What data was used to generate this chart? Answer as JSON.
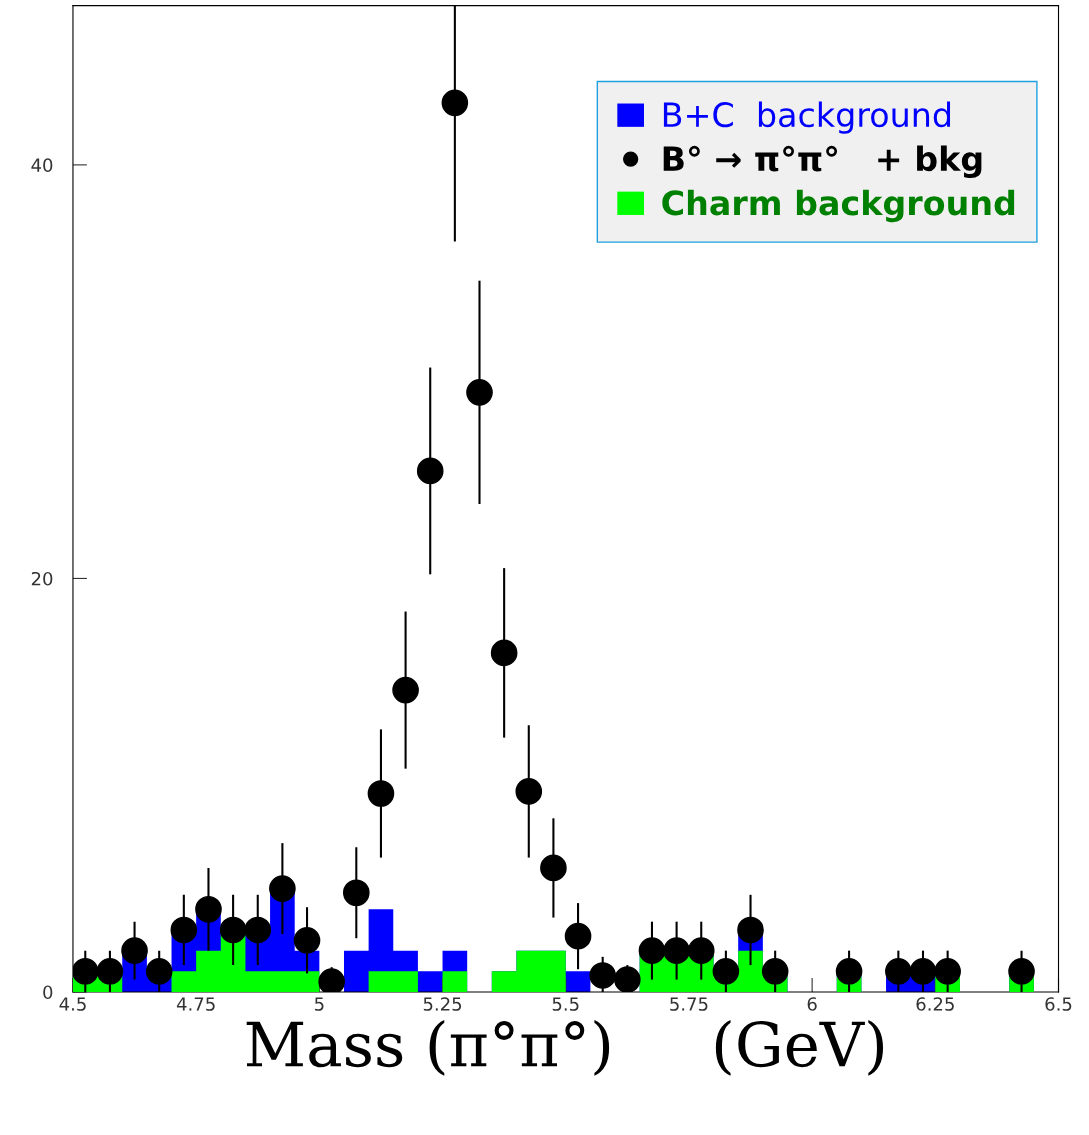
{
  "chart_data": {
    "type": "histogram",
    "bins": [
      4.5,
      4.55,
      4.6,
      4.65,
      4.7,
      4.75,
      4.8,
      4.85,
      4.9,
      4.95,
      5.0,
      5.05,
      5.1,
      5.15,
      5.2,
      5.25,
      5.3,
      5.35,
      5.4,
      5.45,
      5.5,
      5.55,
      5.6,
      5.65,
      5.7,
      5.75,
      5.8,
      5.85,
      5.9,
      5.95,
      6.0,
      6.05,
      6.1,
      6.15,
      6.2,
      6.25,
      6.3,
      6.35,
      6.4,
      6.45,
      6.5
    ],
    "series": [
      {
        "name": "B+C  background",
        "color": "#0000ff",
        "values": [
          1,
          1,
          2,
          1,
          3,
          4,
          3,
          3,
          5,
          2,
          0,
          2,
          4,
          2,
          1,
          2,
          0,
          1,
          2,
          2,
          1,
          0,
          0,
          2,
          2,
          2,
          1,
          3,
          1,
          0,
          0,
          1,
          0,
          1,
          1,
          1,
          0,
          0,
          1,
          0
        ]
      },
      {
        "name": "B° → π°π°   + bkg",
        "type": "scatter",
        "color": "#000000",
        "x": [
          4.525,
          4.575,
          4.625,
          4.675,
          4.725,
          4.775,
          4.825,
          4.875,
          4.925,
          4.975,
          5.025,
          5.075,
          5.125,
          5.175,
          5.225,
          5.275,
          5.325,
          5.375,
          5.425,
          5.475,
          5.525,
          5.575,
          5.625,
          5.675,
          5.725,
          5.775,
          5.825,
          5.875,
          5.925,
          6.075,
          6.175,
          6.225,
          6.275,
          6.425
        ],
        "values": [
          1,
          1,
          2,
          1,
          3,
          4,
          3,
          3,
          5,
          2.5,
          0.5,
          4.8,
          9.6,
          14.6,
          25.2,
          43.0,
          29.0,
          16.4,
          9.7,
          6.0,
          2.7,
          0.8,
          0.6,
          2,
          2,
          2,
          1,
          3,
          1,
          1,
          1,
          1,
          1,
          1
        ],
        "errors": [
          1,
          1,
          1.4,
          1,
          1.7,
          2,
          1.7,
          1.7,
          2.2,
          1.6,
          0.7,
          2.2,
          3.1,
          3.8,
          5.0,
          [
            36.3,
            47.7
          ],
          5.4,
          4.1,
          3.2,
          2.4,
          1.6,
          0.9,
          0.7,
          1.4,
          1.4,
          1.4,
          1,
          1.7,
          1,
          1,
          1,
          1,
          1,
          1
        ]
      },
      {
        "name": "Charm background",
        "color": "#00ff00",
        "values": [
          1,
          1,
          0,
          0,
          1,
          2,
          3,
          1,
          1,
          1,
          0,
          0,
          1,
          1,
          0,
          1,
          0,
          1,
          2,
          2,
          0,
          0,
          0,
          2,
          2,
          2,
          1,
          2,
          1,
          0,
          0,
          1,
          0,
          0,
          0,
          1,
          0,
          0,
          1,
          0
        ]
      }
    ],
    "xlabel": "Mass (π°π°)     (GeV)",
    "xlim": [
      4.5,
      6.5
    ],
    "xticks": [
      4.5,
      4.75,
      5,
      5.25,
      5.5,
      5.75,
      6,
      6.25,
      6.5
    ],
    "ylim": [
      0,
      47.7
    ],
    "yticks": [
      0,
      20,
      40
    ],
    "marker": "circle",
    "grid": false,
    "legend": "top right"
  }
}
